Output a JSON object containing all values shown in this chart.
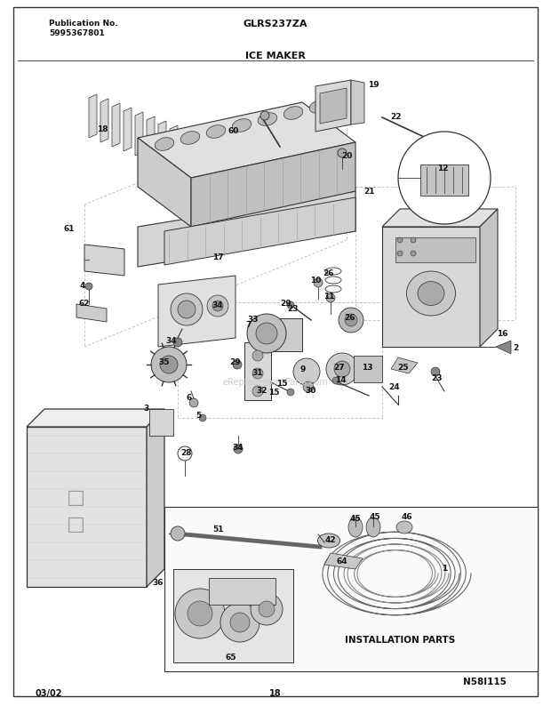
{
  "bg_color": "#ffffff",
  "page_width": 6.2,
  "page_height": 7.94,
  "dpi": 100,
  "header": {
    "pub_label": "Publication No.",
    "pub_number": "5995367801",
    "model": "GLRS237ZA",
    "section": "ICE MAKER"
  },
  "footer": {
    "date": "03/02",
    "page": "18",
    "diagram_id": "N58I115"
  },
  "line_color": "#333333",
  "text_color": "#111111",
  "watermark": "eReplacementParts.com"
}
